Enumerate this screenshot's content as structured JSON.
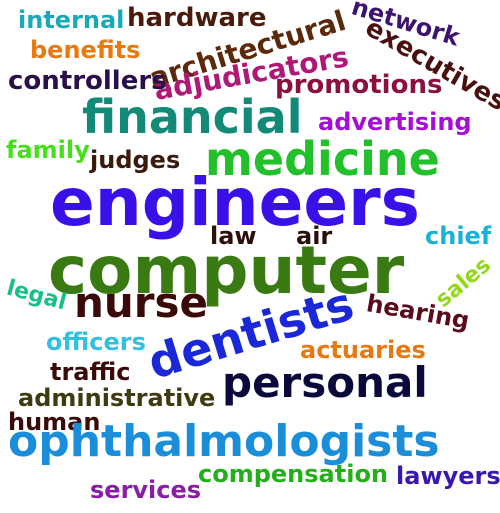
{
  "words": [
    {
      "text": "internal",
      "color": "#1aa9b8"
    },
    {
      "text": "hardware",
      "color": "#4a1a0a"
    },
    {
      "text": "network",
      "color": "#3d1470"
    },
    {
      "text": "benefits",
      "color": "#e87a10"
    },
    {
      "text": "architectural",
      "color": "#5a2a0a"
    },
    {
      "text": "executives",
      "color": "#4a1010"
    },
    {
      "text": "adjudicators",
      "color": "#b01878"
    },
    {
      "text": "controllers",
      "color": "#2b0f4a"
    },
    {
      "text": "promotions",
      "color": "#8a1040"
    },
    {
      "text": "financial",
      "color": "#138a78"
    },
    {
      "text": "advertising",
      "color": "#a60ed8"
    },
    {
      "text": "family",
      "color": "#46e01a"
    },
    {
      "text": "judges",
      "color": "#3a1a0a"
    },
    {
      "text": "medicine",
      "color": "#22c02a"
    },
    {
      "text": "engineers",
      "color": "#3a10e8"
    },
    {
      "text": "law",
      "color": "#2a1008"
    },
    {
      "text": "air",
      "color": "#2a1008"
    },
    {
      "text": "chief",
      "color": "#1ab0d8"
    },
    {
      "text": "computer",
      "color": "#3a7a12"
    },
    {
      "text": "legal",
      "color": "#18c088"
    },
    {
      "text": "nurse",
      "color": "#3a0a08"
    },
    {
      "text": "dentists",
      "color": "#1a28d8"
    },
    {
      "text": "sales",
      "color": "#90d818"
    },
    {
      "text": "hearing",
      "color": "#5a0a1a"
    },
    {
      "text": "officers",
      "color": "#32c0e0"
    },
    {
      "text": "actuaries",
      "color": "#e87810"
    },
    {
      "text": "traffic",
      "color": "#3a0a08"
    },
    {
      "text": "personal",
      "color": "#0a0a3a"
    },
    {
      "text": "administrative",
      "color": "#403a10"
    },
    {
      "text": "human",
      "color": "#3a0a08"
    },
    {
      "text": "ophthalmologists",
      "color": "#1a8ed8"
    },
    {
      "text": "compensation",
      "color": "#22b018"
    },
    {
      "text": "lawyers",
      "color": "#3a18b0"
    },
    {
      "text": "services",
      "color": "#8a1ca8"
    }
  ]
}
